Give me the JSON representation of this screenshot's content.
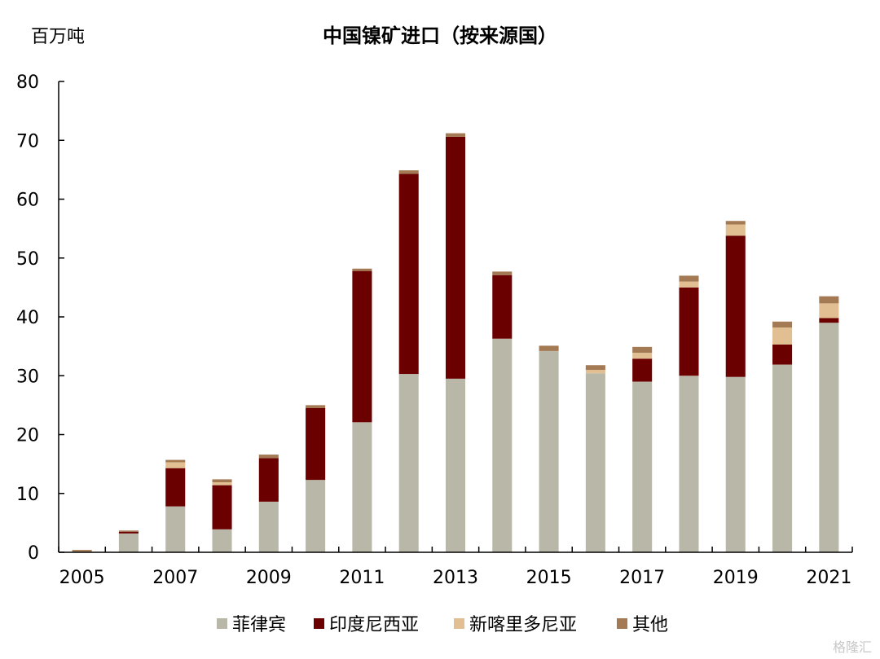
{
  "chart_data": {
    "type": "bar",
    "stacked": true,
    "title": "中国镍矿进口（按来源国）",
    "unit_label": "百万吨",
    "xlabel": "",
    "ylabel": "",
    "ylim": [
      0,
      80
    ],
    "yticks": [
      0,
      10,
      20,
      30,
      40,
      50,
      60,
      70,
      80
    ],
    "categories": [
      "2005",
      "2006",
      "2007",
      "2008",
      "2009",
      "2010",
      "2011",
      "2012",
      "2013",
      "2014",
      "2015",
      "2016",
      "2017",
      "2018",
      "2019",
      "2020",
      "2021"
    ],
    "xtick_labels": [
      "2005",
      "",
      "2007",
      "",
      "2009",
      "",
      "2011",
      "",
      "2013",
      "",
      "2015",
      "",
      "2017",
      "",
      "2019",
      "",
      "2021"
    ],
    "series": [
      {
        "name": "菲律宾",
        "color": "#b9b8a8",
        "values": [
          0.1,
          3.2,
          7.8,
          3.9,
          8.6,
          12.3,
          22.1,
          30.3,
          29.5,
          36.3,
          34.2,
          30.4,
          29.0,
          30.0,
          29.8,
          31.9,
          39.0
        ]
      },
      {
        "name": "印度尼西亚",
        "color": "#6b0000",
        "values": [
          0.0,
          0.3,
          6.5,
          7.5,
          7.4,
          12.2,
          25.7,
          34.0,
          41.1,
          10.8,
          0.0,
          0.0,
          3.9,
          15.0,
          24.0,
          3.4,
          0.8
        ]
      },
      {
        "name": "新喀里多尼亚",
        "color": "#e1bf92",
        "values": [
          0.0,
          0.0,
          1.0,
          0.5,
          0.0,
          0.0,
          0.0,
          0.0,
          0.0,
          0.0,
          0.0,
          0.6,
          1.0,
          1.0,
          1.9,
          2.9,
          2.5
        ]
      },
      {
        "name": "其他",
        "color": "#a47a55",
        "values": [
          0.3,
          0.2,
          0.4,
          0.5,
          0.6,
          0.5,
          0.4,
          0.6,
          0.6,
          0.6,
          0.9,
          0.8,
          1.0,
          1.0,
          0.6,
          1.0,
          1.2
        ]
      }
    ],
    "legend_position": "bottom",
    "grid": false
  },
  "watermark": "格隆汇"
}
